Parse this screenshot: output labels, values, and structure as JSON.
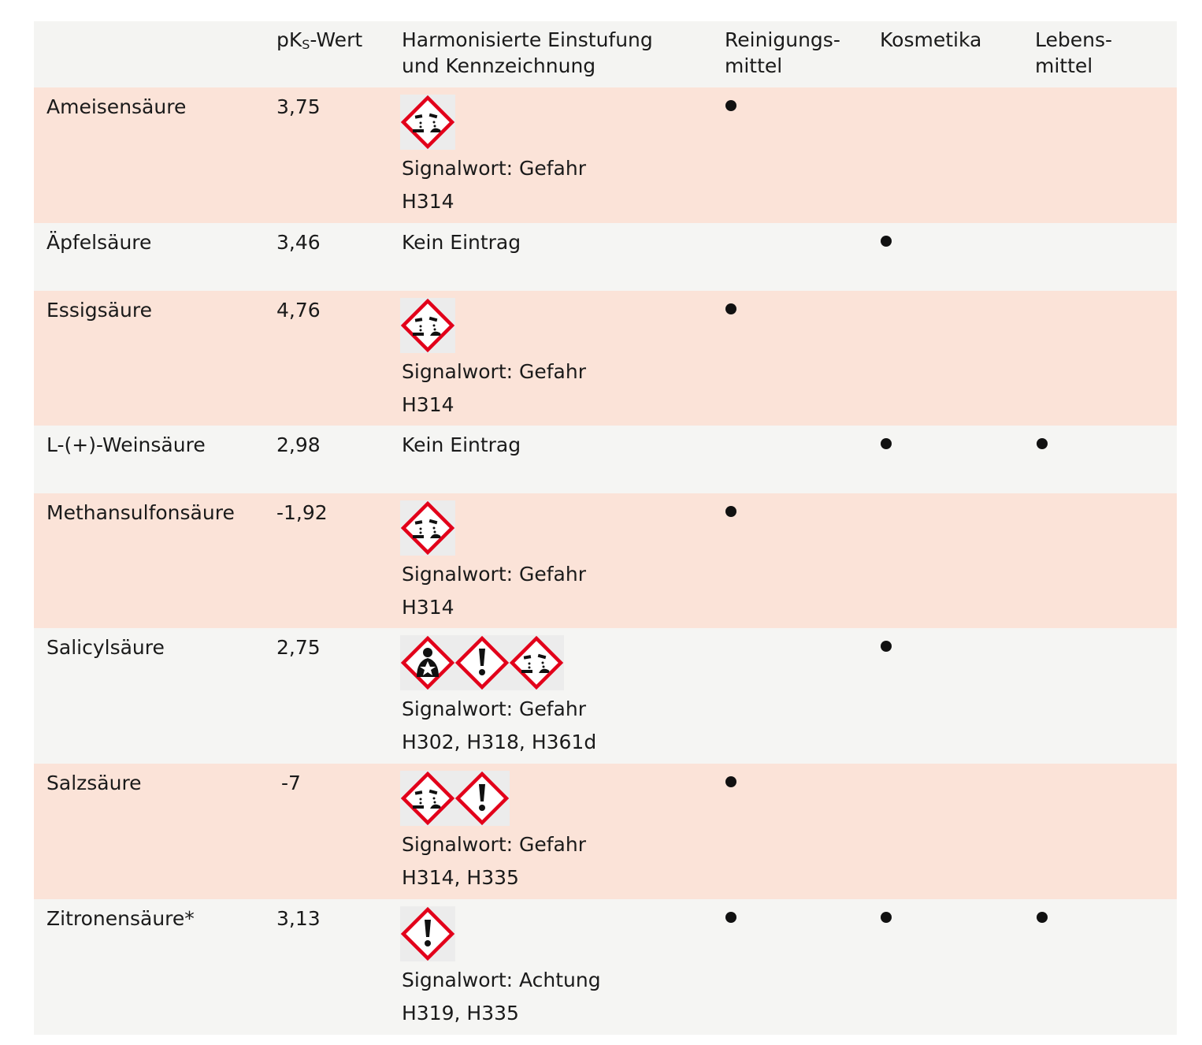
{
  "header": {
    "name": "",
    "pks": {
      "main": "pK",
      "sub": "S",
      "rest": "-Wert"
    },
    "classification": [
      "Harmonisierte Einstufung",
      "und Kennzeichnung"
    ],
    "cleaning": [
      "Reinigungs-",
      "mittel"
    ],
    "cosmetics": [
      "Kosmetika"
    ],
    "food": [
      "Lebens-",
      "mittel"
    ]
  },
  "rows": [
    {
      "name": "Ameisensäure",
      "pks": "3,75",
      "signal": "Signalwort: Gefahr",
      "h": "H314"
    },
    {
      "name": "Äpfelsäure",
      "pks": "3,46",
      "classification": "Kein Eintrag"
    },
    {
      "name": "Essigsäure",
      "pks": "4,76",
      "signal": "Signalwort: Gefahr",
      "h": "H314"
    },
    {
      "name": "L-(+)-Weinsäure",
      "pks": "2,98",
      "classification": "Kein Eintrag"
    },
    {
      "name": "Methansulfonsäure",
      "pks": "-1,92",
      "signal": "Signalwort: Gefahr",
      "h": "H314"
    },
    {
      "name": "Salicylsäure",
      "pks": "2,75",
      "signal": "Signalwort: Gefahr",
      "h": "H302, H318, H361d"
    },
    {
      "name": "Salzsäure",
      "pks": "-7",
      "signal": "Signalwort: Gefahr",
      "h": "H314, H335"
    },
    {
      "name": "Zitronensäure*",
      "pks": "3,13",
      "signal": "Signalwort: Achtung",
      "h": "H319, H335"
    }
  ]
}
